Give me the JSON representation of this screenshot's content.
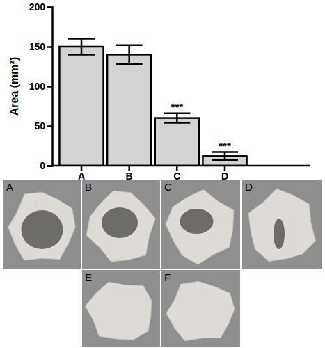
{
  "chart_data": {
    "type": "bar",
    "y_label": "Area (mm²)",
    "categories": [
      "A",
      "B",
      "C",
      "D"
    ],
    "values": [
      150,
      140,
      60,
      12
    ],
    "errors": [
      10,
      12,
      6,
      5
    ],
    "color": "#d3d3d3",
    "ylim": [
      0,
      200
    ],
    "yticks": [
      0,
      50,
      100,
      150,
      200
    ],
    "annotations": [
      {
        "category": "C",
        "text": "***"
      },
      {
        "category": "D",
        "text": "***"
      }
    ]
  },
  "photos": {
    "labels": [
      "A",
      "B",
      "C",
      "D",
      "E",
      "F"
    ]
  }
}
